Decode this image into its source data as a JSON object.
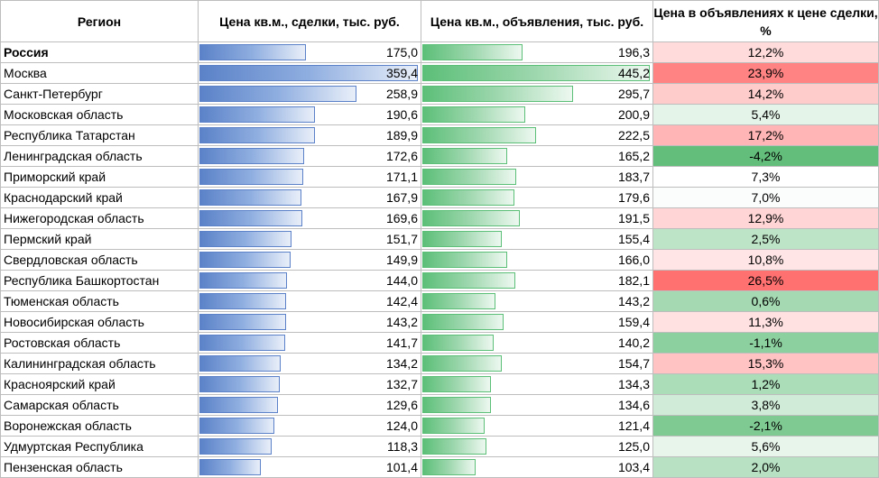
{
  "table": {
    "headers": {
      "region": "Регион",
      "deal": "Цена кв.м., сделки, тыс. руб.",
      "ad": "Цена кв.м., объявления, тыс. руб.",
      "pct": "Цена в объявлениях к цене сделки, %"
    },
    "deal_max": 359.4,
    "ad_max": 445.2,
    "rows": [
      {
        "region": "Россия",
        "deal": "175,0",
        "deal_num": 175.0,
        "ad": "196,3",
        "ad_num": 196.3,
        "pct": "12,2%",
        "pct_num": 12.2,
        "bold": true
      },
      {
        "region": "Москва",
        "deal": "359,4",
        "deal_num": 359.4,
        "ad": "445,2",
        "ad_num": 445.2,
        "pct": "23,9%",
        "pct_num": 23.9
      },
      {
        "region": "Санкт-Петербург",
        "deal": "258,9",
        "deal_num": 258.9,
        "ad": "295,7",
        "ad_num": 295.7,
        "pct": "14,2%",
        "pct_num": 14.2
      },
      {
        "region": "Московская область",
        "deal": "190,6",
        "deal_num": 190.6,
        "ad": "200,9",
        "ad_num": 200.9,
        "pct": "5,4%",
        "pct_num": 5.4
      },
      {
        "region": "Республика Татарстан",
        "deal": "189,9",
        "deal_num": 189.9,
        "ad": "222,5",
        "ad_num": 222.5,
        "pct": "17,2%",
        "pct_num": 17.2
      },
      {
        "region": "Ленинградская область",
        "deal": "172,6",
        "deal_num": 172.6,
        "ad": "165,2",
        "ad_num": 165.2,
        "pct": "-4,2%",
        "pct_num": -4.2
      },
      {
        "region": "Приморский край",
        "deal": "171,1",
        "deal_num": 171.1,
        "ad": "183,7",
        "ad_num": 183.7,
        "pct": "7,3%",
        "pct_num": 7.3
      },
      {
        "region": "Краснодарский край",
        "deal": "167,9",
        "deal_num": 167.9,
        "ad": "179,6",
        "ad_num": 179.6,
        "pct": "7,0%",
        "pct_num": 7.0
      },
      {
        "region": "Нижегородская область",
        "deal": "169,6",
        "deal_num": 169.6,
        "ad": "191,5",
        "ad_num": 191.5,
        "pct": "12,9%",
        "pct_num": 12.9
      },
      {
        "region": "Пермский край",
        "deal": "151,7",
        "deal_num": 151.7,
        "ad": "155,4",
        "ad_num": 155.4,
        "pct": "2,5%",
        "pct_num": 2.5
      },
      {
        "region": "Свердловская область",
        "deal": "149,9",
        "deal_num": 149.9,
        "ad": "166,0",
        "ad_num": 166.0,
        "pct": "10,8%",
        "pct_num": 10.8
      },
      {
        "region": "Республика Башкортостан",
        "deal": "144,0",
        "deal_num": 144.0,
        "ad": "182,1",
        "ad_num": 182.1,
        "pct": "26,5%",
        "pct_num": 26.5
      },
      {
        "region": "Тюменская область",
        "deal": "142,4",
        "deal_num": 142.4,
        "ad": "143,2",
        "ad_num": 143.2,
        "pct": "0,6%",
        "pct_num": 0.6
      },
      {
        "region": "Новосибирская область",
        "deal": "143,2",
        "deal_num": 143.2,
        "ad": "159,4",
        "ad_num": 159.4,
        "pct": "11,3%",
        "pct_num": 11.3
      },
      {
        "region": "Ростовская область",
        "deal": "141,7",
        "deal_num": 141.7,
        "ad": "140,2",
        "ad_num": 140.2,
        "pct": "-1,1%",
        "pct_num": -1.1
      },
      {
        "region": "Калининградская область",
        "deal": "134,2",
        "deal_num": 134.2,
        "ad": "154,7",
        "ad_num": 154.7,
        "pct": "15,3%",
        "pct_num": 15.3
      },
      {
        "region": "Красноярский край",
        "deal": "132,7",
        "deal_num": 132.7,
        "ad": "134,3",
        "ad_num": 134.3,
        "pct": "1,2%",
        "pct_num": 1.2
      },
      {
        "region": "Самарская область",
        "deal": "129,6",
        "deal_num": 129.6,
        "ad": "134,6",
        "ad_num": 134.6,
        "pct": "3,8%",
        "pct_num": 3.8
      },
      {
        "region": "Воронежская область",
        "deal": "124,0",
        "deal_num": 124.0,
        "ad": "121,4",
        "ad_num": 121.4,
        "pct": "-2,1%",
        "pct_num": -2.1
      },
      {
        "region": "Удмуртская Республика",
        "deal": "118,3",
        "deal_num": 118.3,
        "ad": "125,0",
        "ad_num": 125.0,
        "pct": "5,6%",
        "pct_num": 5.6
      },
      {
        "region": "Пензенская область",
        "deal": "101,4",
        "deal_num": 101.4,
        "ad": "103,4",
        "ad_num": 103.4,
        "pct": "2,0%",
        "pct_num": 2.0
      }
    ]
  }
}
